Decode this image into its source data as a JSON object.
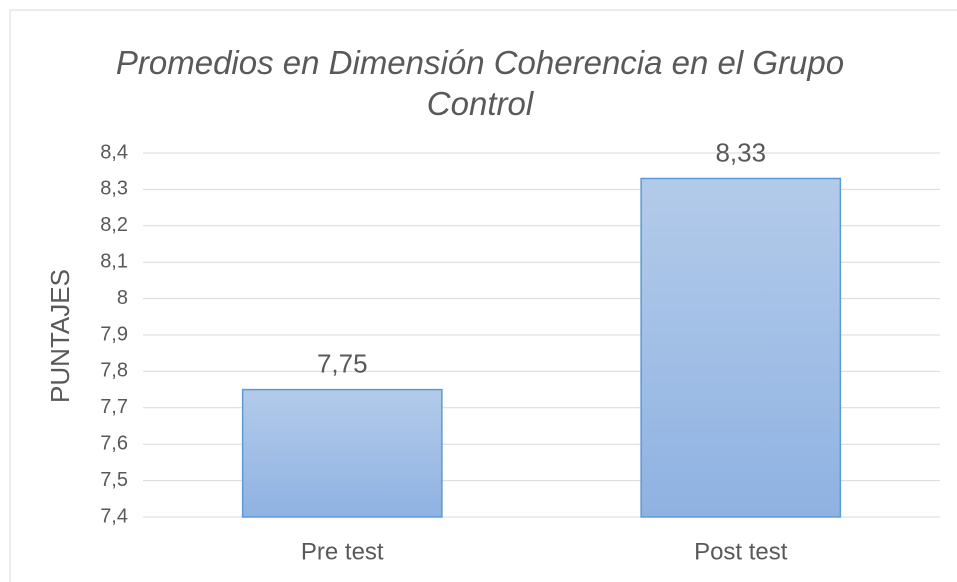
{
  "chart_data": {
    "type": "bar",
    "title": "Promedios en Dimensión Coherencia en el Grupo Control",
    "y_label": "PUNTAJES",
    "categories": [
      "Pre test",
      "Post test"
    ],
    "values": [
      7.75,
      8.33
    ],
    "value_labels": [
      "7,75",
      "8,33"
    ],
    "color": "#5b9bd5",
    "ylim": [
      7.4,
      8.4
    ],
    "yticks": [
      {
        "value": 7.4,
        "label": "7,4"
      },
      {
        "value": 7.5,
        "label": "7,5"
      },
      {
        "value": 7.6,
        "label": "7,6"
      },
      {
        "value": 7.7,
        "label": "7,7"
      },
      {
        "value": 7.8,
        "label": "7,8"
      },
      {
        "value": 7.9,
        "label": "7,9"
      },
      8,
      {
        "value": 8.1,
        "label": "8,1"
      },
      {
        "value": 8.2,
        "label": "8,2"
      },
      {
        "value": 8.3,
        "label": "8,3"
      },
      {
        "value": 8.4,
        "label": "8,4"
      }
    ],
    "grid": true
  }
}
